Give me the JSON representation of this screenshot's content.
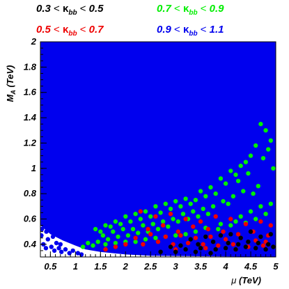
{
  "chart_data": {
    "type": "scatter",
    "xlabel_sym": "μ",
    "xlabel_unit": " (TeV)",
    "ylabel_main": "M",
    "ylabel_sub": "A",
    "ylabel_unit": " (TeV)",
    "xlim": [
      0.3,
      5.0
    ],
    "ylim": [
      0.3,
      2.0
    ],
    "x_ticks": [
      "0.5",
      "1",
      "1.5",
      "2",
      "2.5",
      "3",
      "3.5",
      "4",
      "4.5",
      "5"
    ],
    "y_ticks": [
      "0.4",
      "0.6",
      "0.8",
      "1",
      "1.2",
      "1.4",
      "1.6",
      "1.8",
      "2"
    ],
    "legend": [
      {
        "low": "0.3",
        "high": "0.5",
        "color": "#000000"
      },
      {
        "low": "0.7",
        "high": "0.9",
        "color": "#00ee00"
      },
      {
        "low": "0.5",
        "high": "0.7",
        "color": "#ee0000"
      },
      {
        "low": "0.9",
        "high": "1.1",
        "color": "#0000ee"
      }
    ],
    "legend_symbol": "κ",
    "legend_sub": "bb",
    "legend_lt": "<",
    "series": [
      {
        "color": "#0000ee",
        "fill": "solid region",
        "boundary_lower": [
          [
            0.3,
            0.55
          ],
          [
            0.5,
            0.48
          ],
          [
            0.75,
            0.43
          ],
          [
            1.0,
            0.39
          ],
          [
            1.2,
            0.36
          ],
          [
            1.5,
            0.34
          ],
          [
            2.0,
            0.32
          ],
          [
            2.5,
            0.31
          ],
          [
            5.0,
            0.3
          ]
        ],
        "x": [
          0.32,
          0.36,
          0.41,
          0.45,
          0.52,
          0.58,
          0.62,
          0.67,
          0.72,
          0.8,
          0.88,
          0.95,
          1.05,
          1.12,
          0.48,
          0.55,
          0.42,
          0.7,
          0.33,
          0.6
        ],
        "y": [
          0.47,
          0.4,
          0.37,
          0.44,
          0.38,
          0.35,
          0.41,
          0.37,
          0.34,
          0.36,
          0.33,
          0.35,
          0.33,
          0.32,
          0.52,
          0.46,
          0.5,
          0.4,
          0.52,
          0.48
        ]
      },
      {
        "color": "#00ee00",
        "x": [
          4.7,
          4.8,
          4.9,
          4.85,
          4.6,
          4.75,
          4.5,
          4.4,
          4.95,
          4.3,
          4.1,
          4.2,
          3.9,
          4.0,
          4.25,
          3.7,
          3.8,
          3.6,
          3.5,
          3.4,
          3.3,
          3.2,
          3.1,
          3.0,
          2.9,
          2.8,
          2.7,
          2.6,
          2.5,
          2.4,
          2.3,
          2.2,
          2.1,
          2.0,
          1.9,
          1.8,
          1.7,
          1.6,
          1.5,
          1.4,
          4.45,
          4.65,
          4.55,
          4.35,
          4.15,
          3.95,
          3.75,
          3.55,
          3.35,
          3.15,
          2.95,
          2.75,
          2.55,
          2.35,
          2.15,
          1.95,
          1.75,
          1.55,
          4.05,
          3.65,
          3.45,
          3.25,
          3.05,
          2.85,
          2.65,
          2.45,
          2.25,
          2.05,
          1.85,
          1.65,
          4.7,
          4.9,
          4.8,
          4.5,
          4.6,
          4.3,
          4.4,
          4.2,
          4.1,
          3.9,
          3.85,
          3.6,
          3.4,
          3.2,
          3.0,
          2.8,
          2.6,
          2.4,
          2.2,
          2.0,
          1.8,
          1.6,
          1.45,
          1.35,
          1.25,
          1.15
        ],
        "y": [
          1.35,
          1.3,
          1.22,
          1.15,
          1.18,
          1.08,
          1.1,
          1.05,
          1.0,
          1.02,
          0.98,
          0.95,
          0.92,
          0.88,
          0.9,
          0.85,
          0.8,
          0.78,
          0.82,
          0.75,
          0.72,
          0.76,
          0.7,
          0.74,
          0.68,
          0.72,
          0.65,
          0.7,
          0.62,
          0.66,
          0.6,
          0.64,
          0.58,
          0.62,
          0.56,
          0.58,
          0.54,
          0.55,
          0.5,
          0.52,
          0.96,
          0.86,
          0.8,
          0.82,
          0.78,
          0.74,
          0.7,
          0.68,
          0.66,
          0.64,
          0.6,
          0.58,
          0.56,
          0.55,
          0.52,
          0.52,
          0.5,
          0.47,
          0.72,
          0.64,
          0.62,
          0.6,
          0.58,
          0.54,
          0.52,
          0.5,
          0.49,
          0.47,
          0.46,
          0.44,
          0.7,
          0.72,
          0.64,
          0.66,
          0.6,
          0.62,
          0.57,
          0.58,
          0.55,
          0.56,
          0.52,
          0.53,
          0.5,
          0.48,
          0.47,
          0.46,
          0.45,
          0.44,
          0.42,
          0.42,
          0.41,
          0.4,
          0.42,
          0.39,
          0.41,
          0.38
        ]
      },
      {
        "color": "#ee0000",
        "x": [
          2.3,
          2.6,
          2.9,
          3.2,
          3.5,
          3.8,
          4.1,
          4.4,
          4.7,
          4.9,
          2.45,
          2.75,
          3.05,
          3.35,
          3.65,
          3.95,
          4.25,
          4.55,
          4.85,
          2.2,
          2.5,
          2.8,
          3.1,
          3.4,
          3.7,
          4.0,
          4.3,
          4.6,
          4.8,
          2.0,
          1.8,
          1.6,
          2.35,
          2.65,
          2.95,
          3.25,
          3.55,
          3.85,
          4.15,
          4.45,
          4.75,
          3.0,
          3.6,
          4.2
        ],
        "y": [
          0.66,
          0.62,
          0.64,
          0.6,
          0.58,
          0.62,
          0.6,
          0.56,
          0.58,
          0.55,
          0.52,
          0.55,
          0.5,
          0.54,
          0.52,
          0.5,
          0.48,
          0.5,
          0.47,
          0.45,
          0.48,
          0.46,
          0.47,
          0.45,
          0.46,
          0.44,
          0.45,
          0.43,
          0.42,
          0.4,
          0.38,
          0.36,
          0.4,
          0.42,
          0.4,
          0.41,
          0.4,
          0.39,
          0.4,
          0.38,
          0.39,
          0.36,
          0.37,
          0.36
        ]
      },
      {
        "color": "#000000",
        "x": [
          3.3,
          3.6,
          3.9,
          4.1,
          4.3,
          4.5,
          4.7,
          4.9,
          3.45,
          3.75,
          4.05,
          4.25,
          4.45,
          4.65,
          4.85,
          2.9,
          3.1,
          3.2,
          3.5,
          3.8,
          4.0,
          4.2,
          4.4,
          4.6,
          4.8,
          4.95,
          2.7,
          3.0,
          3.4,
          3.7
        ],
        "y": [
          0.44,
          0.46,
          0.47,
          0.48,
          0.45,
          0.5,
          0.46,
          0.48,
          0.4,
          0.42,
          0.41,
          0.4,
          0.42,
          0.41,
          0.4,
          0.38,
          0.39,
          0.36,
          0.37,
          0.36,
          0.37,
          0.36,
          0.38,
          0.37,
          0.36,
          0.38,
          0.34,
          0.34,
          0.34,
          0.33
        ]
      }
    ]
  }
}
